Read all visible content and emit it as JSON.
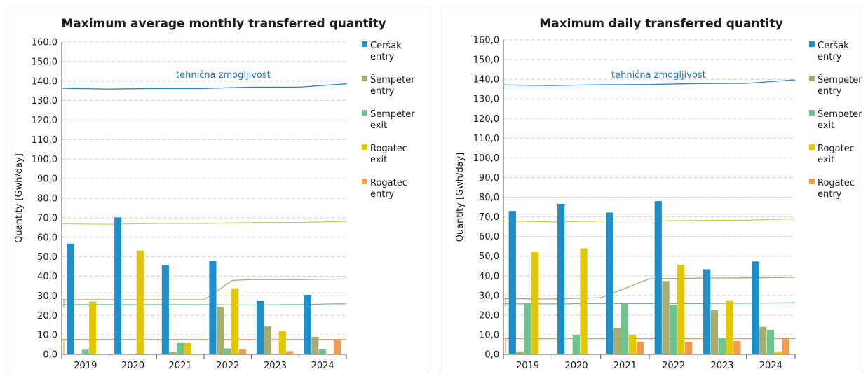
{
  "chart_data": [
    {
      "type": "bar",
      "title": "Maximum average monthly transferred quantity",
      "xlabel": "",
      "ylabel": "Quantity [Gwh/day]",
      "ylim": [
        0,
        160
      ],
      "y_ticks": [
        "0,0",
        "10,0",
        "20,0",
        "30,0",
        "40,0",
        "50,0",
        "60,0",
        "70,0",
        "80,0",
        "90,0",
        "100,0",
        "110,0",
        "120,0",
        "130,0",
        "140,0",
        "150,0",
        "160,0"
      ],
      "categories": [
        "2019",
        "2020",
        "2021",
        "2022",
        "2023",
        "2024"
      ],
      "grid": true,
      "legend_position": "right",
      "series": [
        {
          "name": "Ceršak entry",
          "color": "#1f8fc9",
          "values": [
            56.8,
            70.2,
            45.7,
            47.9,
            27.3,
            30.5
          ]
        },
        {
          "name": "Šempeter entry",
          "color": "#a5ad6f",
          "values": [
            0,
            0,
            1.2,
            24.4,
            14.3,
            9.0
          ]
        },
        {
          "name": "Šempeter exit",
          "color": "#6fc48e",
          "values": [
            2.4,
            0,
            5.8,
            3.0,
            0,
            2.5
          ]
        },
        {
          "name": "Rogatec exit",
          "color": "#e3c800",
          "values": [
            27.1,
            53.2,
            5.8,
            33.8,
            12.0,
            0
          ]
        },
        {
          "name": "Rogatec entry",
          "color": "#f39a4c",
          "values": [
            0,
            0,
            0,
            2.6,
            1.6,
            7.3
          ]
        }
      ],
      "capacity_lines": [
        {
          "color": "#2e86c1",
          "label": "tehnična zmogljivost",
          "points": [
            [
              2019,
              136.3
            ],
            [
              2020,
              135.9
            ],
            [
              2021,
              136.2
            ],
            [
              2022,
              136.2
            ],
            [
              2023,
              136.9
            ],
            [
              2024,
              136.9
            ],
            [
              2025,
              138.6
            ]
          ]
        },
        {
          "color": "#d4cc50",
          "points": [
            [
              2019,
              66.9
            ],
            [
              2020,
              66.7
            ],
            [
              2021,
              67.1
            ],
            [
              2022,
              67.1
            ],
            [
              2023,
              67.5
            ],
            [
              2024,
              67.6
            ],
            [
              2025,
              68.1
            ]
          ]
        },
        {
          "color": "#a5ad6f",
          "points": [
            [
              2019,
              28.0
            ],
            [
              2020,
              28.0
            ],
            [
              2021,
              28.0
            ],
            [
              2022,
              28.0
            ],
            [
              2022.6,
              37.9
            ],
            [
              2023,
              38.3
            ],
            [
              2024,
              38.3
            ],
            [
              2025,
              38.6
            ]
          ]
        },
        {
          "color": "#6fc48e",
          "points": [
            [
              2019,
              25.5
            ],
            [
              2020,
              25.5
            ],
            [
              2021,
              25.5
            ],
            [
              2022,
              25.5
            ],
            [
              2023,
              25.3
            ],
            [
              2024,
              25.5
            ],
            [
              2025,
              26.0
            ]
          ]
        },
        {
          "color": "#f39a4c",
          "points": [
            [
              2019,
              7.6
            ],
            [
              2025,
              7.6
            ]
          ]
        }
      ]
    },
    {
      "type": "bar",
      "title": "Maximum daily transferred quantity",
      "xlabel": "",
      "ylabel": "Quantity [Gwh/day]",
      "ylim": [
        0,
        160
      ],
      "y_ticks": [
        "0,0",
        "10,0",
        "20,0",
        "30,0",
        "40,0",
        "50,0",
        "60,0",
        "70,0",
        "80,0",
        "90,0",
        "100,0",
        "110,0",
        "120,0",
        "130,0",
        "140,0",
        "150,0",
        "160,0"
      ],
      "categories": [
        "2019",
        "2020",
        "2021",
        "2022",
        "2023",
        "2024"
      ],
      "grid": true,
      "legend_position": "right",
      "series": [
        {
          "name": "Ceršak entry",
          "color": "#1f8fc9",
          "values": [
            73.0,
            76.6,
            72.2,
            78.0,
            43.3,
            47.3
          ]
        },
        {
          "name": "Šempeter entry",
          "color": "#a5ad6f",
          "values": [
            1.5,
            0,
            13.4,
            37.3,
            22.4,
            14.0
          ]
        },
        {
          "name": "Šempeter exit",
          "color": "#6fc48e",
          "values": [
            26.3,
            10.0,
            26.0,
            25.0,
            8.3,
            12.5
          ]
        },
        {
          "name": "Rogatec exit",
          "color": "#e3c800",
          "values": [
            52.0,
            54.0,
            9.8,
            45.6,
            27.2,
            1.5
          ]
        },
        {
          "name": "Rogatec entry",
          "color": "#f39a4c",
          "values": [
            0,
            0,
            6.5,
            6.3,
            6.8,
            8.1
          ]
        }
      ],
      "capacity_lines": [
        {
          "color": "#2e86c1",
          "label": "tehnična zmogljivost",
          "points": [
            [
              2019,
              137.1
            ],
            [
              2020,
              136.8
            ],
            [
              2021,
              137.2
            ],
            [
              2022,
              137.3
            ],
            [
              2023,
              137.8
            ],
            [
              2024,
              137.9
            ],
            [
              2025,
              139.7
            ]
          ]
        },
        {
          "color": "#d4cc50",
          "points": [
            [
              2019,
              67.9
            ],
            [
              2020,
              67.4
            ],
            [
              2021,
              67.8
            ],
            [
              2022,
              67.9
            ],
            [
              2023,
              68.2
            ],
            [
              2024,
              68.3
            ],
            [
              2025,
              68.9
            ]
          ]
        },
        {
          "color": "#a5ad6f",
          "points": [
            [
              2019,
              28.3
            ],
            [
              2020,
              28.2
            ],
            [
              2021,
              28.8
            ],
            [
              2022,
              38.4
            ],
            [
              2023,
              38.8
            ],
            [
              2024,
              38.9
            ],
            [
              2025,
              39.2
            ]
          ]
        },
        {
          "color": "#6fc48e",
          "points": [
            [
              2019,
              25.8
            ],
            [
              2020,
              25.7
            ],
            [
              2021,
              25.9
            ],
            [
              2022,
              25.9
            ],
            [
              2023,
              25.9
            ],
            [
              2024,
              26.0
            ],
            [
              2025,
              26.3
            ]
          ]
        },
        {
          "color": "#f39a4c",
          "points": [
            [
              2019,
              8.0
            ],
            [
              2025,
              8.0
            ]
          ]
        }
      ]
    }
  ]
}
